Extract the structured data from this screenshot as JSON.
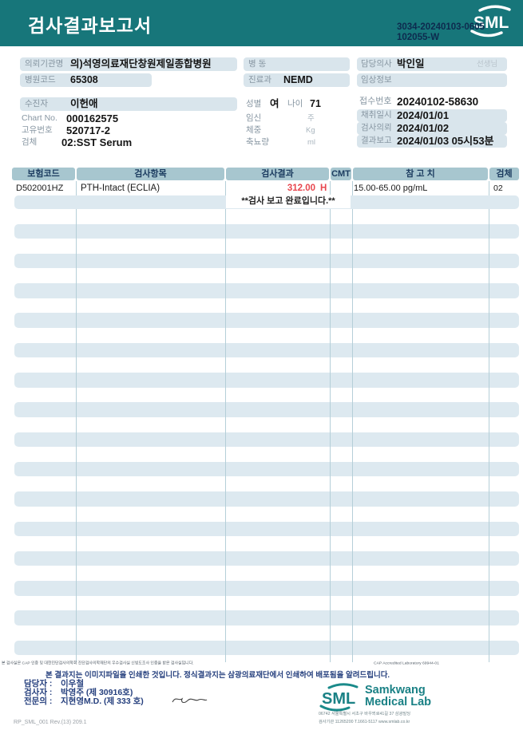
{
  "colors": {
    "teal": "#17767a",
    "navy_id": "#0d2a4e",
    "chip": "#d9e5ec",
    "table_header": "#a7c6cf",
    "stripe": "#dde9f0",
    "result_red": "#e8474f",
    "footer_navy": "#26407e"
  },
  "header": {
    "title": "검사결과보고서",
    "logo_text": "SML",
    "report_id_line1": "3034-20240103-0605",
    "report_id_line2": "102055-W"
  },
  "patient": {
    "left": [
      {
        "label": "의뢰기관명",
        "value": "의)석영의료재단창원제일종합병원"
      },
      {
        "label": "병원코드",
        "value": "65308"
      },
      {
        "label": "수진자",
        "value": "이헌애"
      },
      {
        "label": "Chart No.",
        "value": "000162575"
      },
      {
        "label": "고유번호",
        "value": "520717-2"
      },
      {
        "label": "검체",
        "value": "02:SST Serum"
      }
    ],
    "middle": [
      {
        "label": "병 동",
        "value": ""
      },
      {
        "label": "진료과",
        "value": "NEMD"
      },
      {
        "label": "성별",
        "value": "여",
        "label2": "나이",
        "value2": "71"
      },
      {
        "label": "임신",
        "unit": "주"
      },
      {
        "label": "체중",
        "unit": "Kg"
      },
      {
        "label": "축뇨량",
        "unit": "ml"
      }
    ],
    "right": [
      {
        "label": "담당의사",
        "value": "박인일",
        "suffix": "선생님"
      },
      {
        "label": "임상정보",
        "value": ""
      },
      {
        "label": "접수번호",
        "value": "20240102-58630"
      },
      {
        "label": "채취일시",
        "value": "2024/01/01"
      },
      {
        "label": "검사의뢰",
        "value": "2024/01/02"
      },
      {
        "label": "결과보고",
        "value": "2024/01/03 05시53분"
      }
    ]
  },
  "table": {
    "headers": [
      "보험코드",
      "검사항목",
      "검사결과",
      "CMT",
      "참 고 치",
      "검체"
    ],
    "rows": [
      {
        "code": "D502001HZ",
        "test": "PTH-Intact (ECLIA)",
        "result": "312.00",
        "flag": "H",
        "cmt": "",
        "reference": "15.00-65.00 pg/mL",
        "specimen": "02"
      }
    ],
    "completion_note": "**검사  보고  완료입니다.**"
  },
  "footer": {
    "accreditation_note": "본 검사실은 CAP 인증 및 대한진단검사의학회 진단검사의학재단의 우수검사실 신빙도조사 인증을 받은 검사실입니다.",
    "cap_text": "CAP Accredited Laboratory 69944-01",
    "notice": "본 결과지는 이미지파일을 인쇄한 것입니다. 정식결과지는 삼광의료재단에서 인쇄하여 배포됨을 알려드립니다.",
    "staff": [
      {
        "label": "담당자 :",
        "value": "이우철"
      },
      {
        "label": "검사자 :",
        "value": "박영주 (제 30916호)"
      },
      {
        "label": "전문의 :",
        "value": "지현영M.D. (제 333 호)"
      }
    ],
    "doc_code": "RP_SML_001 Rev.(13) 209.1",
    "lab": {
      "logo_text": "SML",
      "name_line1": "Samkwang",
      "name_line2": "Medical Lab",
      "address": "06742 서울특별시 서초구 바우뫼로41길 37 삼광빌딩",
      "contact": "검사기관 11265200 T.1661-5117 www.smlab.co.kr"
    }
  }
}
